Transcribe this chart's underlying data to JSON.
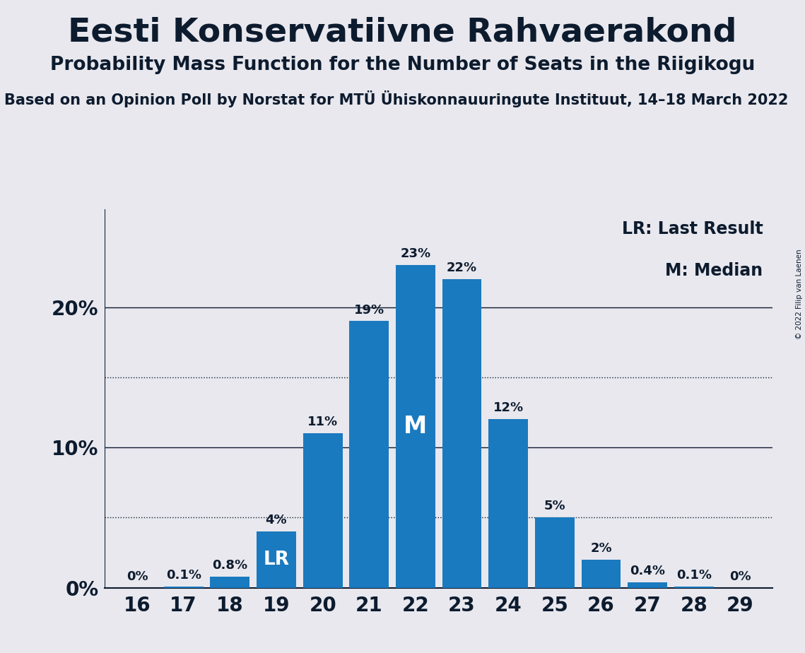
{
  "title": "Eesti Konservatiivne Rahvaerakond",
  "subtitle": "Probability Mass Function for the Number of Seats in the Riigikogu",
  "source_line": "Based on an Opinion Poll by Norstat for MTÜ Ühiskonnauuringute Instituut, 14–18 March 2022",
  "copyright": "© 2022 Filip van Laenen",
  "seats": [
    16,
    17,
    18,
    19,
    20,
    21,
    22,
    23,
    24,
    25,
    26,
    27,
    28,
    29
  ],
  "probabilities": [
    0.0,
    0.1,
    0.8,
    4.0,
    11.0,
    19.0,
    23.0,
    22.0,
    12.0,
    5.0,
    2.0,
    0.4,
    0.1,
    0.0
  ],
  "bar_labels": [
    "0%",
    "0.1%",
    "0.8%",
    "4%",
    "11%",
    "19%",
    "23%",
    "22%",
    "12%",
    "5%",
    "2%",
    "0.4%",
    "0.1%",
    "0%"
  ],
  "bar_color": "#1a7abf",
  "background_color": "#e8e8ee",
  "median_seat": 22,
  "lr_seat": 19,
  "yticks": [
    0,
    10,
    20
  ],
  "ytick_labels": [
    "0%",
    "10%",
    "20%"
  ],
  "dotted_lines": [
    5,
    15
  ],
  "legend_lr": "LR: Last Result",
  "legend_m": "M: Median",
  "title_fontsize": 34,
  "subtitle_fontsize": 19,
  "source_fontsize": 15,
  "bar_label_fontsize": 13,
  "tick_fontsize": 20,
  "legend_fontsize": 17
}
